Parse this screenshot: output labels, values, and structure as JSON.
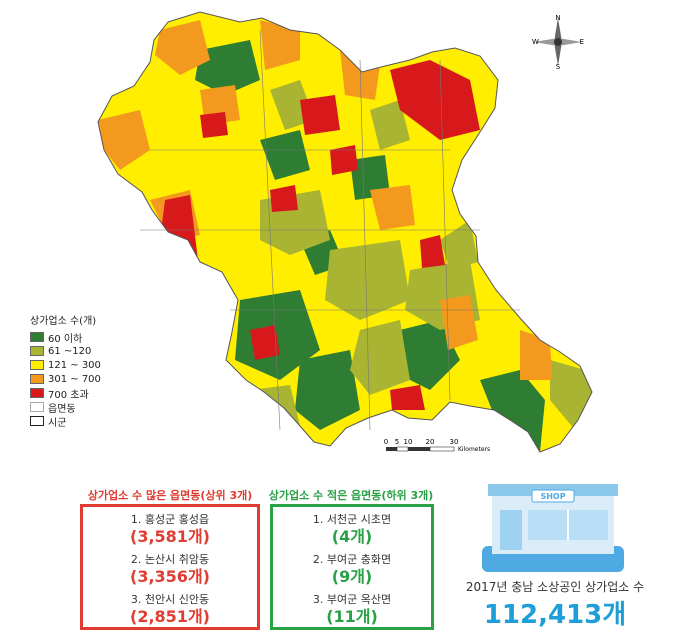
{
  "legend": {
    "title": "상가업소 수(개)",
    "items": [
      {
        "label": "60 이하",
        "color": "#2e7d32"
      },
      {
        "label": "61 ~120",
        "color": "#a8b432"
      },
      {
        "label": "121 ~ 300",
        "color": "#ffee00"
      },
      {
        "label": "301 ~ 700",
        "color": "#f39a1e"
      },
      {
        "label": "700 초과",
        "color": "#d7191c"
      },
      {
        "label": "읍면동",
        "color": "#ffffff"
      },
      {
        "label": "시군",
        "color": "#ffffff"
      }
    ]
  },
  "compass": {
    "n": "N",
    "s": "S",
    "e": "E",
    "w": "W"
  },
  "scale": {
    "ticks": [
      "0",
      "5",
      "10",
      "20",
      "30"
    ],
    "unit": "Kilometers"
  },
  "top3": {
    "title": "상가업소 수 많은 읍면동(상위 3개)",
    "color": "#e03c31",
    "items": [
      {
        "name": "1. 홍성군 홍성읍",
        "value": "(3,581개)"
      },
      {
        "name": "2. 논산시 취암동",
        "value": "(3,356개)"
      },
      {
        "name": "3. 천안시 신안동",
        "value": "(2,851개)"
      }
    ]
  },
  "bottom3": {
    "title": "상가업소 수 적은 읍면동(하위 3개)",
    "color": "#2aa147",
    "items": [
      {
        "name": "1. 서천군 시초면",
        "value": "(4개)"
      },
      {
        "name": "2. 부여군 충화면",
        "value": "(9개)"
      },
      {
        "name": "3. 부여군 옥산면",
        "value": "(11개)"
      }
    ]
  },
  "shop_sign": "SHOP",
  "total": {
    "label": "2017년 충남 소상공인 상가업소 수",
    "value": "112,413개"
  }
}
